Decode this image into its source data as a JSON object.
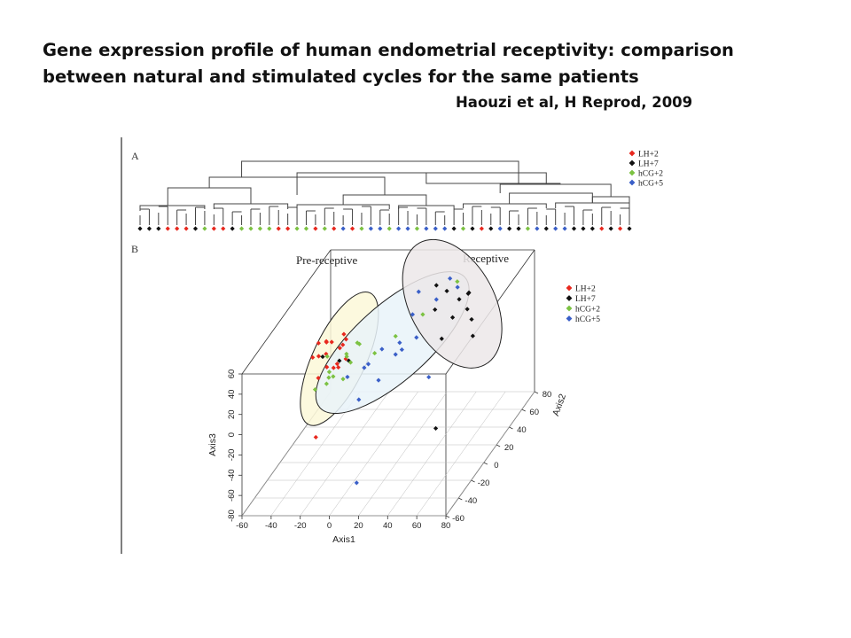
{
  "slide": {
    "title_line1": "Gene expression profile of human endometrial receptivity: comparison",
    "title_line2": "between natural and stimulated cycles for the same patients",
    "citation": "Haouzi et al, H Reprod, 2009"
  },
  "colors": {
    "LH+2": "#e8281e",
    "LH+7": "#111111",
    "hCG+2": "#7cc242",
    "hCG+5": "#3a5fc8",
    "pre_receptive_fill": "#fbf8d8",
    "bridge_fill": "#e9f3f9",
    "receptive_fill": "#ece7e9"
  },
  "chart_data": [
    {
      "type": "dendrogram",
      "panel_label": "A",
      "legend": [
        "LH+2",
        "LH+7",
        "hCG+2",
        "hCG+5"
      ],
      "leaf_groups": [
        "LH+7",
        "LH+7",
        "LH+7",
        "LH+2",
        "LH+2",
        "LH+2",
        "LH+7",
        "hCG+2",
        "LH+2",
        "LH+2",
        "LH+7",
        "hCG+2",
        "hCG+2",
        "hCG+2",
        "hCG+2",
        "LH+2",
        "LH+2",
        "hCG+2",
        "hCG+2",
        "LH+2",
        "hCG+2",
        "LH+2",
        "hCG+5",
        "LH+2",
        "hCG+2",
        "hCG+5",
        "hCG+5",
        "hCG+2",
        "hCG+5",
        "hCG+5",
        "hCG+2",
        "hCG+5",
        "hCG+5",
        "hCG+5",
        "LH+7",
        "hCG+2",
        "LH+7",
        "LH+2",
        "LH+7",
        "hCG+5",
        "LH+7",
        "LH+7",
        "hCG+2",
        "hCG+5",
        "LH+7",
        "hCG+5",
        "hCG+5",
        "LH+7",
        "LH+7",
        "LH+7",
        "LH+2",
        "LH+7",
        "LH+2",
        "LH+7"
      ]
    },
    {
      "type": "scatter",
      "panel_label": "B",
      "region_labels": [
        "Pre-receptive",
        "Receptive"
      ],
      "legend": [
        "LH+2",
        "LH+7",
        "hCG+2",
        "hCG+5"
      ],
      "xlabel": "Axis1",
      "ylabel": "Axis2",
      "zlabel": "Axis3",
      "xticks": [
        -60,
        -40,
        -20,
        0,
        20,
        40,
        60,
        80
      ],
      "yticks": [
        -60,
        -40,
        -20,
        0,
        20,
        40,
        60,
        80
      ],
      "zticks": [
        -80,
        -60,
        -40,
        -20,
        0,
        20,
        40,
        60
      ],
      "xlim": [
        -60,
        80
      ],
      "ylim": [
        -60,
        80
      ],
      "zlim": [
        -80,
        60
      ],
      "series": [
        {
          "name": "LH+2",
          "points": [
            [
              -27,
              -15,
              51
            ],
            [
              -21,
              -8,
              46
            ],
            [
              -24,
              -10,
              36
            ],
            [
              -18,
              -12,
              24
            ],
            [
              -26,
              -5,
              44
            ],
            [
              -15,
              -9,
              41
            ],
            [
              -20,
              -18,
              30
            ],
            [
              -12,
              -6,
              47
            ],
            [
              -25,
              -20,
              21
            ],
            [
              -16,
              -2,
              38
            ],
            [
              -22,
              -14,
              51
            ],
            [
              -10,
              -11,
              32
            ],
            [
              -19,
              -4,
              21
            ],
            [
              -28,
              -22,
              43
            ],
            [
              -13,
              -16,
              28
            ],
            [
              -23,
              -24,
              46
            ],
            [
              -17,
              2,
              45
            ],
            [
              -18,
              -40,
              -20
            ]
          ]
        },
        {
          "name": "LH+7",
          "points": [
            [
              -14,
              -12,
              31
            ],
            [
              -22,
              -20,
              42
            ],
            [
              -11,
              -4,
              24
            ],
            [
              35,
              45,
              50
            ],
            [
              42,
              38,
              30
            ],
            [
              48,
              50,
              44
            ],
            [
              38,
              30,
              16
            ],
            [
              44,
              58,
              36
            ],
            [
              52,
              45,
              22
            ],
            [
              36,
              24,
              50
            ],
            [
              50,
              30,
              55
            ],
            [
              55,
              40,
              10
            ],
            [
              46,
              52,
              26
            ],
            [
              30,
              40,
              60
            ],
            [
              60,
              -30,
              -20
            ]
          ]
        },
        {
          "name": "hCG+2",
          "points": [
            [
              -25,
              -25,
              14
            ],
            [
              -20,
              -15,
              17
            ],
            [
              -8,
              -20,
              20
            ],
            [
              -15,
              -30,
              24
            ],
            [
              -10,
              -10,
              36
            ],
            [
              -5,
              -15,
              32
            ],
            [
              -12,
              -5,
              29
            ],
            [
              -18,
              -22,
              44
            ],
            [
              -6,
              -2,
              40
            ],
            [
              -14,
              -28,
              34
            ],
            [
              15,
              10,
              36
            ],
            [
              5,
              0,
              28
            ],
            [
              -2,
              -8,
              44
            ],
            [
              -20,
              -8,
              12
            ],
            [
              40,
              50,
              55
            ],
            [
              25,
              30,
              40
            ]
          ]
        },
        {
          "name": "hCG+5",
          "points": [
            [
              -5,
              -20,
              22
            ],
            [
              5,
              -10,
              26
            ],
            [
              10,
              0,
              32
            ],
            [
              15,
              10,
              18
            ],
            [
              20,
              5,
              34
            ],
            [
              25,
              20,
              26
            ],
            [
              5,
              -25,
              4
            ],
            [
              30,
              40,
              46
            ],
            [
              20,
              35,
              58
            ],
            [
              35,
              50,
              58
            ],
            [
              15,
              20,
              14
            ],
            [
              38,
              55,
              45
            ],
            [
              12,
              -10,
              10
            ],
            [
              0,
              -5,
              18
            ],
            [
              18,
              30,
              40
            ],
            [
              40,
              5,
              0
            ],
            [
              10,
              -40,
              -65
            ]
          ]
        }
      ]
    }
  ]
}
